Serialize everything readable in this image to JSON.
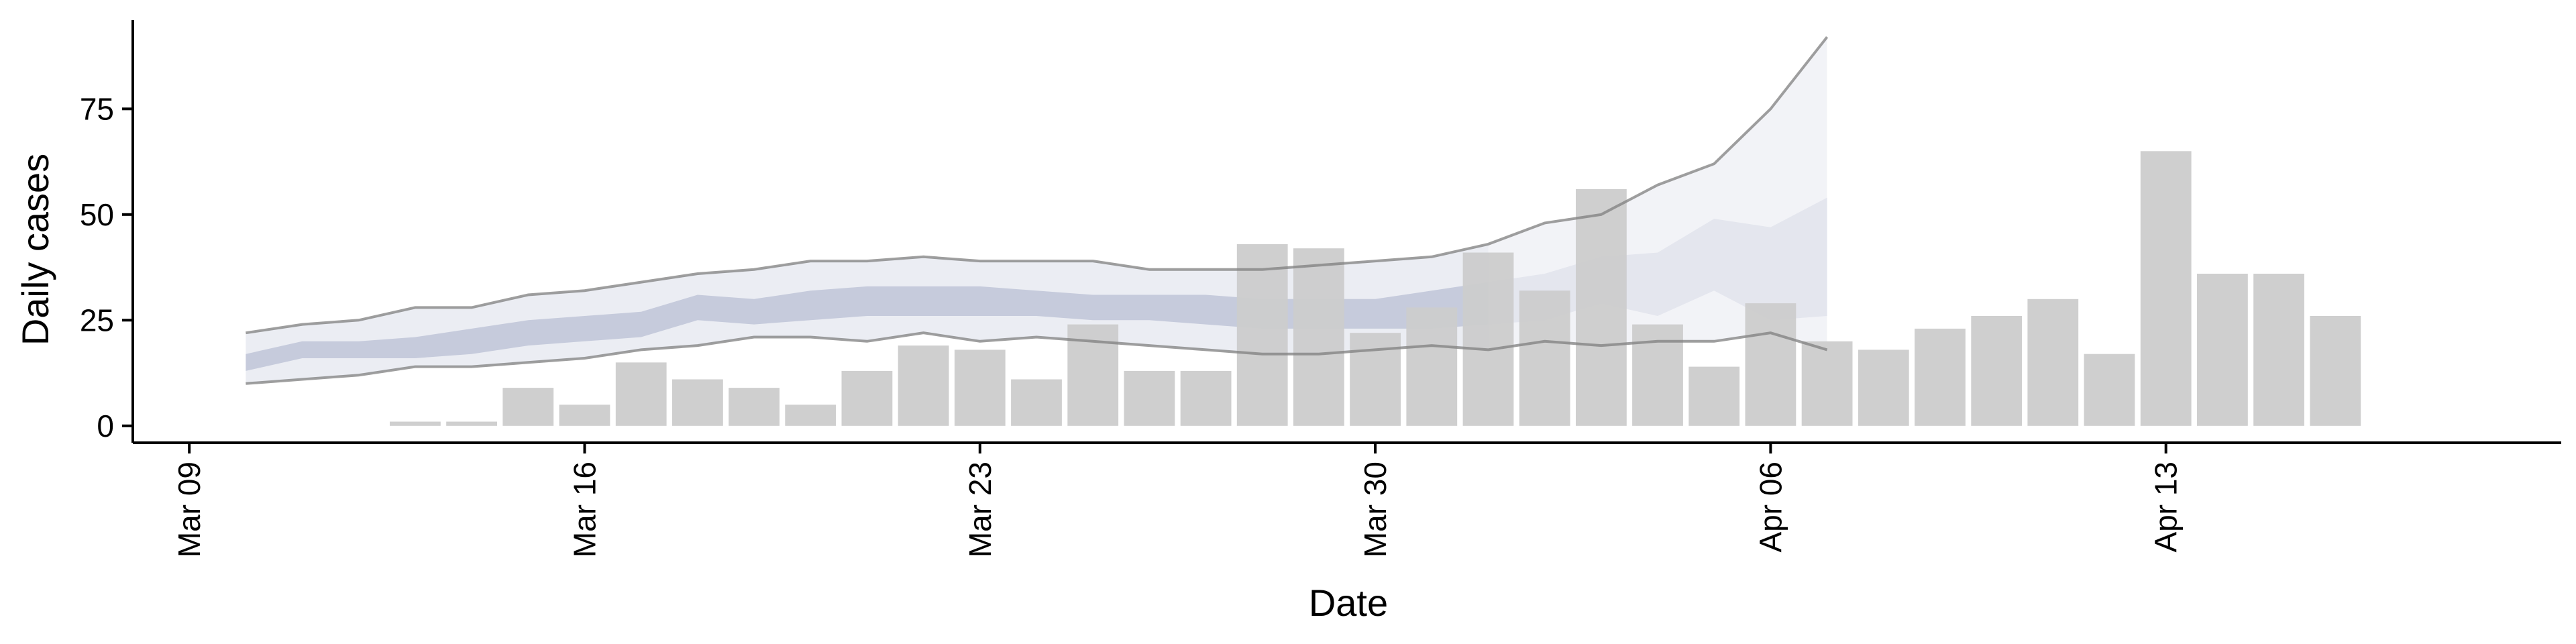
{
  "chart_data": {
    "type": "bar",
    "xlabel": "Date",
    "ylabel": "Daily cases",
    "x_ticks": [
      "Mar 09",
      "Mar 16",
      "Mar 23",
      "Mar 30",
      "Apr 06",
      "Apr 13"
    ],
    "y_ticks": [
      0,
      25,
      50,
      75
    ],
    "ylim": [
      -4,
      96
    ],
    "xlim": [
      "2020-03-08",
      "2020-04-20"
    ],
    "grid": false,
    "legend": "none",
    "colors": {
      "bars": "#cccccc",
      "interval_outer": "#ebedf3",
      "interval_inner": "#c6cbdc",
      "interval_outer_forecast": "#f2f3f7",
      "interval_inner_forecast": "#e4e6ee",
      "reported_lines": "#7f7f7f"
    },
    "bars": {
      "dates": [
        "2020-03-13",
        "2020-03-14",
        "2020-03-15",
        "2020-03-16",
        "2020-03-17",
        "2020-03-18",
        "2020-03-19",
        "2020-03-20",
        "2020-03-21",
        "2020-03-22",
        "2020-03-23",
        "2020-03-24",
        "2020-03-25",
        "2020-03-26",
        "2020-03-27",
        "2020-03-28",
        "2020-03-29",
        "2020-03-30",
        "2020-03-31",
        "2020-04-01",
        "2020-04-02",
        "2020-04-03",
        "2020-04-04",
        "2020-04-05",
        "2020-04-06",
        "2020-04-07",
        "2020-04-08",
        "2020-04-09",
        "2020-04-10",
        "2020-04-11",
        "2020-04-12",
        "2020-04-13",
        "2020-04-14",
        "2020-04-15",
        "2020-04-16"
      ],
      "values": [
        1,
        1,
        9,
        5,
        15,
        11,
        9,
        5,
        13,
        19,
        18,
        11,
        24,
        13,
        13,
        43,
        42,
        22,
        28,
        41,
        32,
        56,
        24,
        14,
        29,
        20,
        18,
        23,
        26,
        30,
        17,
        65,
        36,
        36,
        26
      ]
    },
    "estimate": {
      "dates": [
        "2020-03-10",
        "2020-03-11",
        "2020-03-12",
        "2020-03-13",
        "2020-03-14",
        "2020-03-15",
        "2020-03-16",
        "2020-03-17",
        "2020-03-18",
        "2020-03-19",
        "2020-03-20",
        "2020-03-21",
        "2020-03-22",
        "2020-03-23",
        "2020-03-24",
        "2020-03-25",
        "2020-03-26",
        "2020-03-27",
        "2020-03-28",
        "2020-03-29",
        "2020-03-30",
        "2020-03-31",
        "2020-04-01",
        "2020-04-02",
        "2020-04-03",
        "2020-04-04",
        "2020-04-05",
        "2020-04-06",
        "2020-04-07"
      ],
      "forecast_from": "2020-04-01",
      "outer_lower": [
        10,
        11,
        12,
        14,
        14,
        15,
        16,
        18,
        19,
        21,
        21,
        20,
        22,
        20,
        21,
        20,
        19,
        18,
        17,
        17,
        18,
        19,
        18,
        20,
        19,
        20,
        20,
        22,
        18
      ],
      "outer_upper": [
        22,
        24,
        25,
        28,
        28,
        31,
        32,
        34,
        36,
        37,
        39,
        39,
        40,
        39,
        39,
        39,
        37,
        37,
        37,
        38,
        39,
        40,
        43,
        48,
        50,
        57,
        62,
        75,
        92
      ],
      "inner_lower": [
        13,
        16,
        16,
        16,
        17,
        19,
        20,
        21,
        25,
        24,
        25,
        26,
        26,
        26,
        26,
        25,
        25,
        24,
        23,
        23,
        23,
        23,
        24,
        25,
        29,
        26,
        32,
        25,
        26
      ],
      "inner_upper": [
        17,
        20,
        20,
        21,
        23,
        25,
        26,
        27,
        31,
        30,
        32,
        33,
        33,
        33,
        32,
        31,
        31,
        31,
        30,
        30,
        30,
        32,
        34,
        36,
        40,
        41,
        49,
        47,
        54
      ]
    }
  }
}
